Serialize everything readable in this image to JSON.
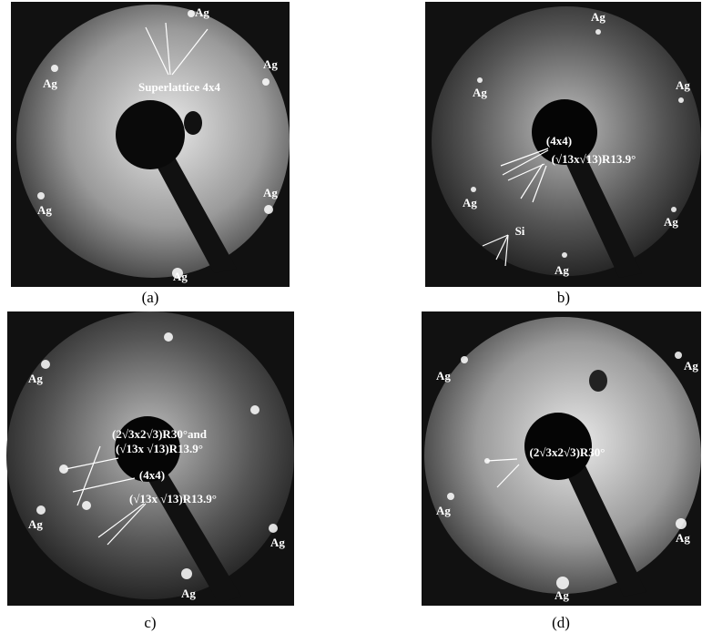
{
  "panels": [
    {
      "caption": "(a)",
      "labels": [
        "Ag",
        "Ag",
        "Ag",
        "Superlattice 4x4",
        "Ag",
        "Ag",
        "Ag"
      ]
    },
    {
      "caption": "b)",
      "labels": [
        "Ag",
        "Ag",
        "Ag",
        "(4x4)",
        "(√13x√13)R13.9°",
        "Ag",
        "Ag",
        "Si",
        "Ag"
      ]
    },
    {
      "caption": "c)",
      "labels": [
        "Ag",
        "(2√3x2√3)R30°and",
        "(√13x √13)R13.9°",
        "(4x4)",
        "(√13x √13)R13.9°",
        "Ag",
        "Ag",
        "Ag"
      ]
    },
    {
      "caption": "(d)",
      "labels": [
        "Ag",
        "Ag",
        "(2√3x2√3)R30°",
        "Ag",
        "Ag",
        "Ag"
      ]
    }
  ]
}
